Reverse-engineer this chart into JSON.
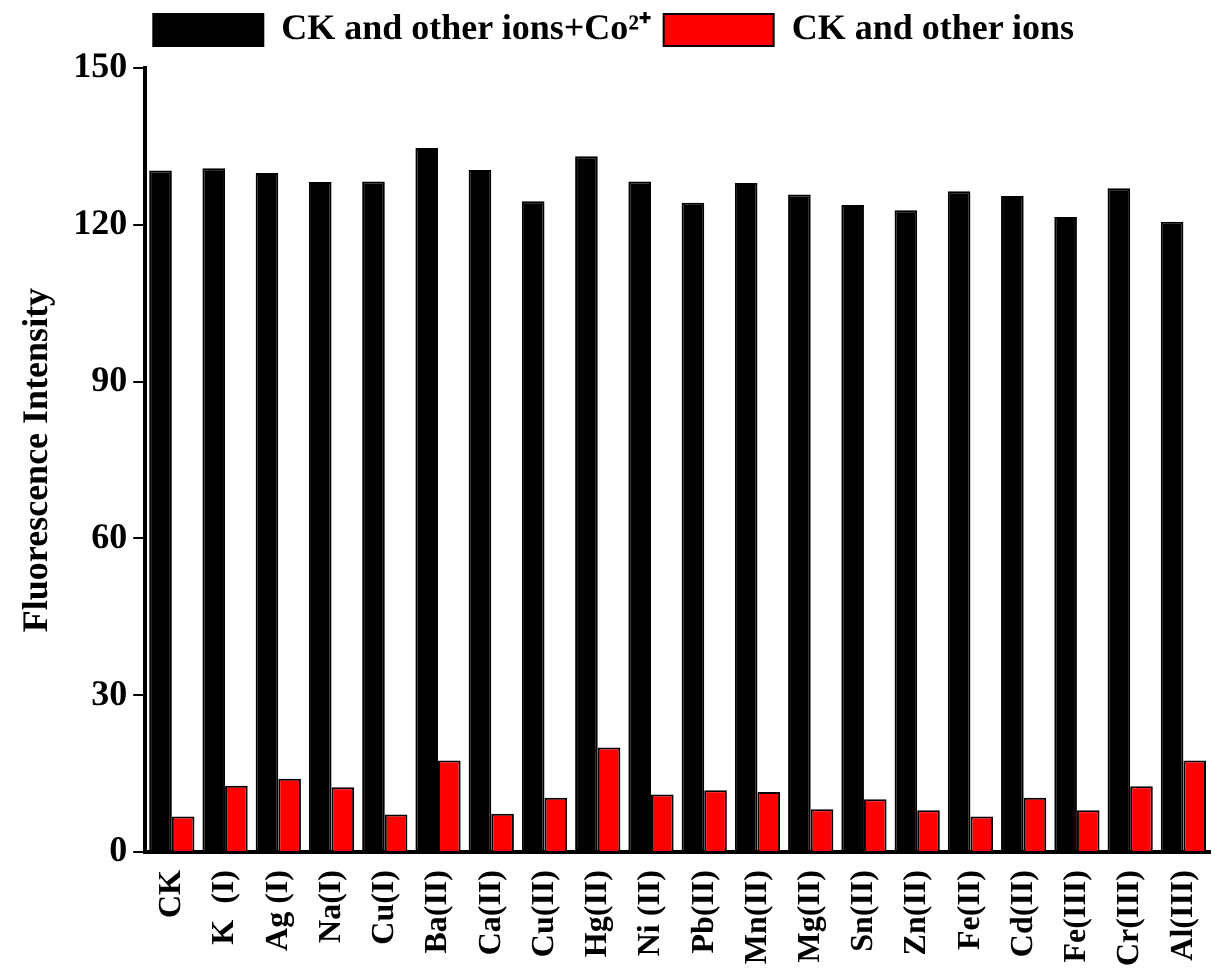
{
  "chart_data": {
    "type": "bar",
    "ylabel": "Fluorescence Intensity",
    "categories": [
      "CK",
      "K  (I)",
      "Ag (I)",
      "Na(I)",
      "Cu(I)",
      "Ba(II)",
      "Ca(II)",
      "Cu(II)",
      "Hg(II)",
      "Ni (II)",
      "Pb(II)",
      "Mn(II)",
      "Mg(II)",
      "Sn(II)",
      "Zn(II)",
      "Fe(II)",
      "Cd(II)",
      "Fe(III)",
      "Cr(III)",
      "Al(III)"
    ],
    "series": [
      {
        "name": "CK and other ions+Co²⁺",
        "color": "#000000",
        "values": [
          130.4,
          130.8,
          129.9,
          128.2,
          128.3,
          134.7,
          130.5,
          124.5,
          133.1,
          128.3,
          124.2,
          128,
          125.8,
          123.8,
          122.8,
          126.4,
          125.5,
          121.5,
          127,
          120.6
        ]
      },
      {
        "name": "CK and other ions",
        "color": "#ff0000",
        "values": [
          6.8,
          12.7,
          14,
          12.4,
          7.2,
          17.5,
          7.3,
          10.4,
          20,
          11,
          11.8,
          11.5,
          8.2,
          10.1,
          8,
          6.8,
          10.4,
          8,
          12.6,
          17.5
        ]
      }
    ],
    "ylim": [
      0,
      150
    ],
    "yticks": [
      0,
      30,
      60,
      90,
      120,
      150
    ],
    "grid": false,
    "legend": "top"
  }
}
